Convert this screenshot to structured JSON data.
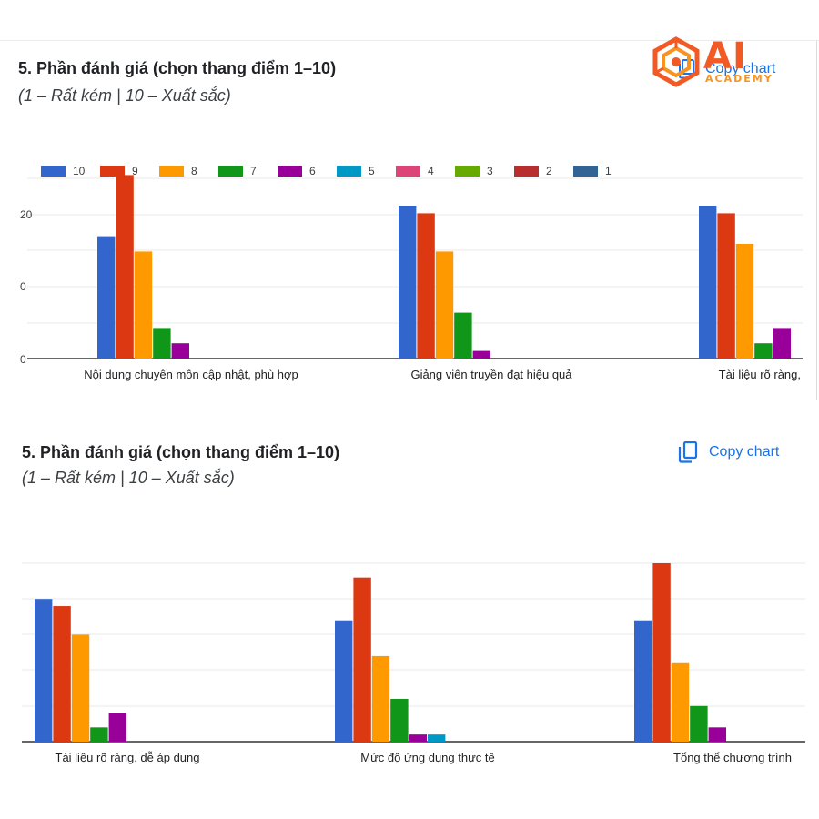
{
  "logo": {
    "name": "AI",
    "sub": "ACADEMY"
  },
  "panels": [
    {
      "question_title": "5. Phần đánh giá (chọn thang điểm 1–10)",
      "question_desc": "(1 – Rất kém | 10 – Xuất sắc)",
      "copy_label": "Copy chart",
      "icon": "copy-chart-icon"
    },
    {
      "question_title": "5. Phần đánh giá (chọn thang điểm 1–10)",
      "question_desc": "(1 – Rất kém | 10 – Xuất sắc)",
      "copy_label": "Copy chart",
      "icon": "copy-chart-icon"
    }
  ],
  "chart_data": [
    {
      "type": "bar",
      "legend_position": "top",
      "grid": true,
      "legend": [
        "10",
        "9",
        "8",
        "7",
        "6",
        "5",
        "4",
        "3",
        "2",
        "1"
      ],
      "colors": [
        "#3366cc",
        "#dc3912",
        "#ff9900",
        "#109618",
        "#990099",
        "#0099c6",
        "#dd4477",
        "#66aa00",
        "#b82e2e",
        "#316395"
      ],
      "y_ticks": [
        "0",
        "0",
        "20"
      ],
      "ylim": [
        0,
        25
      ],
      "categories": [
        "Nội dung chuyên môn cập nhật, phù hợp",
        "Giảng viên truyền đạt hiệu quả",
        "Tài liệu rõ ràng,"
      ],
      "series": [
        {
          "name": "10",
          "values": [
            16,
            20,
            20
          ]
        },
        {
          "name": "9",
          "values": [
            24,
            19,
            19
          ]
        },
        {
          "name": "8",
          "values": [
            14,
            14,
            15
          ]
        },
        {
          "name": "7",
          "values": [
            4,
            6,
            2
          ]
        },
        {
          "name": "6",
          "values": [
            2,
            1,
            4
          ]
        },
        {
          "name": "5",
          "values": [
            0,
            0,
            0
          ]
        },
        {
          "name": "4",
          "values": [
            0,
            0,
            0
          ]
        },
        {
          "name": "3",
          "values": [
            0,
            0,
            0
          ]
        },
        {
          "name": "2",
          "values": [
            0,
            0,
            0
          ]
        },
        {
          "name": "1",
          "values": [
            0,
            0,
            0
          ]
        }
      ]
    },
    {
      "type": "bar",
      "grid": true,
      "colors": [
        "#3366cc",
        "#dc3912",
        "#ff9900",
        "#109618",
        "#990099",
        "#0099c6",
        "#dd4477",
        "#66aa00",
        "#b82e2e",
        "#316395"
      ],
      "ylim": [
        0,
        25
      ],
      "categories": [
        "Tài liệu rõ ràng, dễ áp dụng",
        "Mức độ ứng dụng thực tế",
        "Tổng thể chương trình"
      ],
      "series": [
        {
          "values": [
            20,
            17,
            17
          ]
        },
        {
          "values": [
            19,
            23,
            25
          ]
        },
        {
          "values": [
            15,
            12,
            11
          ]
        },
        {
          "values": [
            2,
            6,
            5
          ]
        },
        {
          "values": [
            4,
            1,
            2
          ]
        },
        {
          "values": [
            0,
            1,
            0
          ]
        },
        {
          "values": [
            0,
            0,
            0
          ]
        },
        {
          "values": [
            0,
            0,
            0
          ]
        },
        {
          "values": [
            0,
            0,
            0
          ]
        },
        {
          "values": [
            0,
            0,
            0
          ]
        }
      ]
    }
  ]
}
